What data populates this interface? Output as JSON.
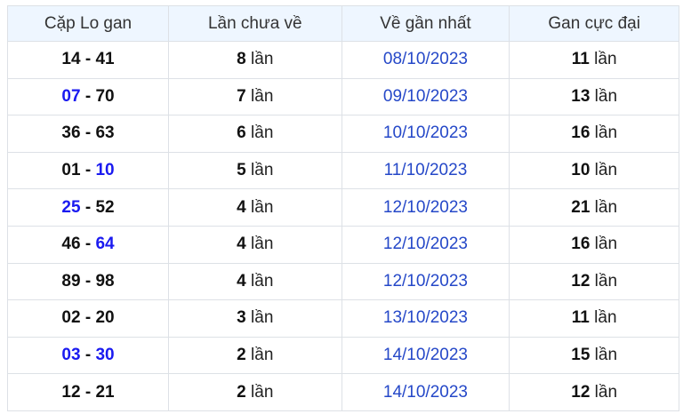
{
  "headers": [
    "Cặp Lo gan",
    "Lần chưa về",
    "Về gần nhất",
    "Gan cực đại"
  ],
  "unit": "lần",
  "colors": {
    "highlight_number": "#1a1af0",
    "date": "#2548c8",
    "header_bg": "#eef6ff"
  },
  "rows": [
    {
      "a": "14",
      "b": "41",
      "a_blue": false,
      "b_blue": false,
      "count": "8",
      "date": "08/10/2023",
      "max": "11"
    },
    {
      "a": "07",
      "b": "70",
      "a_blue": true,
      "b_blue": false,
      "count": "7",
      "date": "09/10/2023",
      "max": "13"
    },
    {
      "a": "36",
      "b": "63",
      "a_blue": false,
      "b_blue": false,
      "count": "6",
      "date": "10/10/2023",
      "max": "16"
    },
    {
      "a": "01",
      "b": "10",
      "a_blue": false,
      "b_blue": true,
      "count": "5",
      "date": "11/10/2023",
      "max": "10"
    },
    {
      "a": "25",
      "b": "52",
      "a_blue": true,
      "b_blue": false,
      "count": "4",
      "date": "12/10/2023",
      "max": "21"
    },
    {
      "a": "46",
      "b": "64",
      "a_blue": false,
      "b_blue": true,
      "count": "4",
      "date": "12/10/2023",
      "max": "16"
    },
    {
      "a": "89",
      "b": "98",
      "a_blue": false,
      "b_blue": false,
      "count": "4",
      "date": "12/10/2023",
      "max": "12"
    },
    {
      "a": "02",
      "b": "20",
      "a_blue": false,
      "b_blue": false,
      "count": "3",
      "date": "13/10/2023",
      "max": "11"
    },
    {
      "a": "03",
      "b": "30",
      "a_blue": true,
      "b_blue": true,
      "count": "2",
      "date": "14/10/2023",
      "max": "15"
    },
    {
      "a": "12",
      "b": "21",
      "a_blue": false,
      "b_blue": false,
      "count": "2",
      "date": "14/10/2023",
      "max": "12"
    }
  ]
}
